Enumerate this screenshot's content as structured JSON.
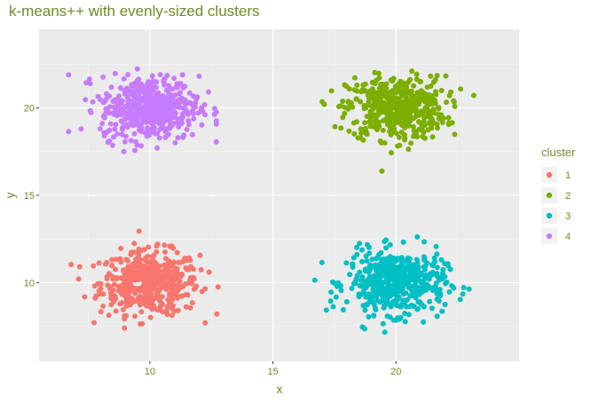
{
  "chart_data": {
    "type": "scatter",
    "title": "k-means++ with evenly-sized clusters",
    "xlabel": "x",
    "ylabel": "y",
    "xlim": [
      5.5,
      25
    ],
    "ylim": [
      5.5,
      24.5
    ],
    "x_ticks": [
      "10",
      "15",
      "20"
    ],
    "y_ticks": [
      "10",
      "15",
      "20"
    ],
    "grid": true,
    "legend": {
      "title": "cluster",
      "position": "right"
    },
    "series": [
      {
        "name": "1",
        "color": "#f8766d",
        "center": [
          10,
          10
        ],
        "spread": [
          1.0,
          0.9
        ],
        "count": 500,
        "x_range": [
          6.8,
          13.1
        ],
        "y_range": [
          7.4,
          13.0
        ]
      },
      {
        "name": "2",
        "color": "#7cae00",
        "center": [
          20,
          20
        ],
        "spread": [
          1.0,
          0.9
        ],
        "count": 500,
        "x_range": [
          16.7,
          23.4
        ],
        "y_range": [
          16.2,
          23.4
        ]
      },
      {
        "name": "3",
        "color": "#00bfc4",
        "center": [
          20,
          10
        ],
        "spread": [
          1.0,
          0.9
        ],
        "count": 500,
        "x_range": [
          16.7,
          23.8
        ],
        "y_range": [
          6.3,
          12.9
        ]
      },
      {
        "name": "4",
        "color": "#c77cff",
        "center": [
          10,
          20
        ],
        "spread": [
          1.0,
          0.9
        ],
        "count": 500,
        "x_range": [
          6.7,
          12.7
        ],
        "y_range": [
          17.5,
          23.6
        ]
      }
    ]
  }
}
